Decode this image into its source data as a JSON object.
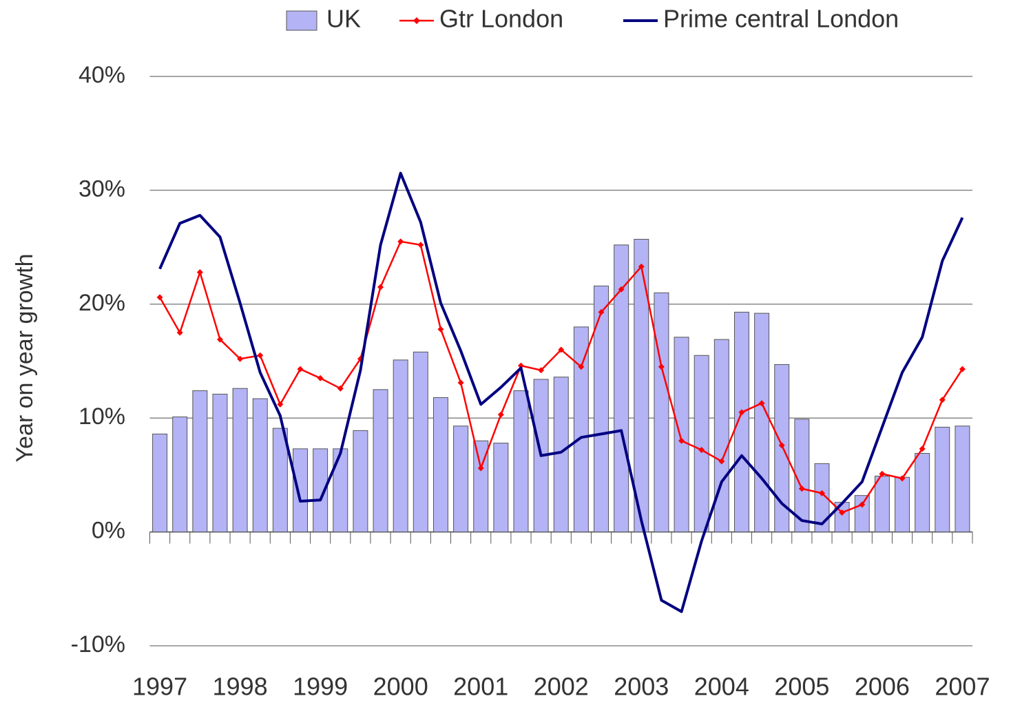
{
  "chart_data": {
    "type": "bar-line",
    "y_label": "Year on year growth",
    "categories": [
      "1997",
      null,
      null,
      null,
      "1998",
      null,
      null,
      null,
      "1999",
      null,
      null,
      null,
      "2000",
      null,
      null,
      null,
      "2001",
      null,
      null,
      null,
      "2002",
      null,
      null,
      null,
      "2003",
      null,
      null,
      null,
      "2004",
      null,
      null,
      null,
      "2005",
      null,
      null,
      null,
      "2006",
      null,
      null,
      null,
      "2007"
    ],
    "series": [
      {
        "name": "UK",
        "kind": "bar",
        "color": "#b3b3f5",
        "values": [
          8.6,
          10.1,
          12.4,
          12.1,
          12.6,
          11.7,
          9.1,
          7.3,
          7.3,
          7.3,
          8.9,
          12.5,
          15.1,
          15.8,
          11.8,
          9.3,
          8.0,
          7.8,
          12.4,
          13.4,
          13.6,
          18.0,
          21.6,
          25.2,
          25.7,
          21.0,
          17.1,
          15.5,
          16.9,
          19.3,
          19.2,
          14.7,
          9.9,
          6.0,
          2.6,
          3.2,
          4.9,
          4.8,
          6.9,
          9.2,
          9.3
        ]
      },
      {
        "name": "Gtr London",
        "kind": "line-marker",
        "color": "#ff0000",
        "values": [
          20.6,
          17.5,
          22.8,
          16.9,
          15.2,
          15.5,
          11.2,
          14.3,
          13.5,
          12.6,
          15.2,
          21.5,
          25.5,
          25.2,
          17.8,
          13.1,
          5.6,
          10.3,
          14.6,
          14.2,
          16.0,
          14.5,
          19.3,
          21.3,
          23.3,
          14.5,
          8.0,
          7.2,
          6.2,
          10.5,
          11.3,
          7.6,
          3.8,
          3.4,
          1.7,
          2.4,
          5.1,
          4.7,
          7.3,
          11.6,
          14.3
        ]
      },
      {
        "name": "Prime central London",
        "kind": "line",
        "color": "#000080",
        "values": [
          23.1,
          27.1,
          27.8,
          25.9,
          20.1,
          14.0,
          10.2,
          2.7,
          2.8,
          6.9,
          14.2,
          25.2,
          31.5,
          27.2,
          20.1,
          15.9,
          11.2,
          12.7,
          14.4,
          6.7,
          7.0,
          8.3,
          8.6,
          8.9,
          1.0,
          -6.0,
          -7.0,
          -0.8,
          4.4,
          6.7,
          4.7,
          2.5,
          1.0,
          0.7,
          2.5,
          4.4,
          9.2,
          14.0,
          17.1,
          23.8,
          27.6
        ]
      }
    ],
    "ylim": [
      -10,
      40
    ],
    "yticks": [
      {
        "value": -10,
        "label": "-10%"
      },
      {
        "value": 0,
        "label": "0%"
      },
      {
        "value": 10,
        "label": "10%"
      },
      {
        "value": 20,
        "label": "20%"
      },
      {
        "value": 30,
        "label": "30%"
      },
      {
        "value": 40,
        "label": "40%"
      }
    ],
    "grid": true,
    "legend": "top"
  }
}
